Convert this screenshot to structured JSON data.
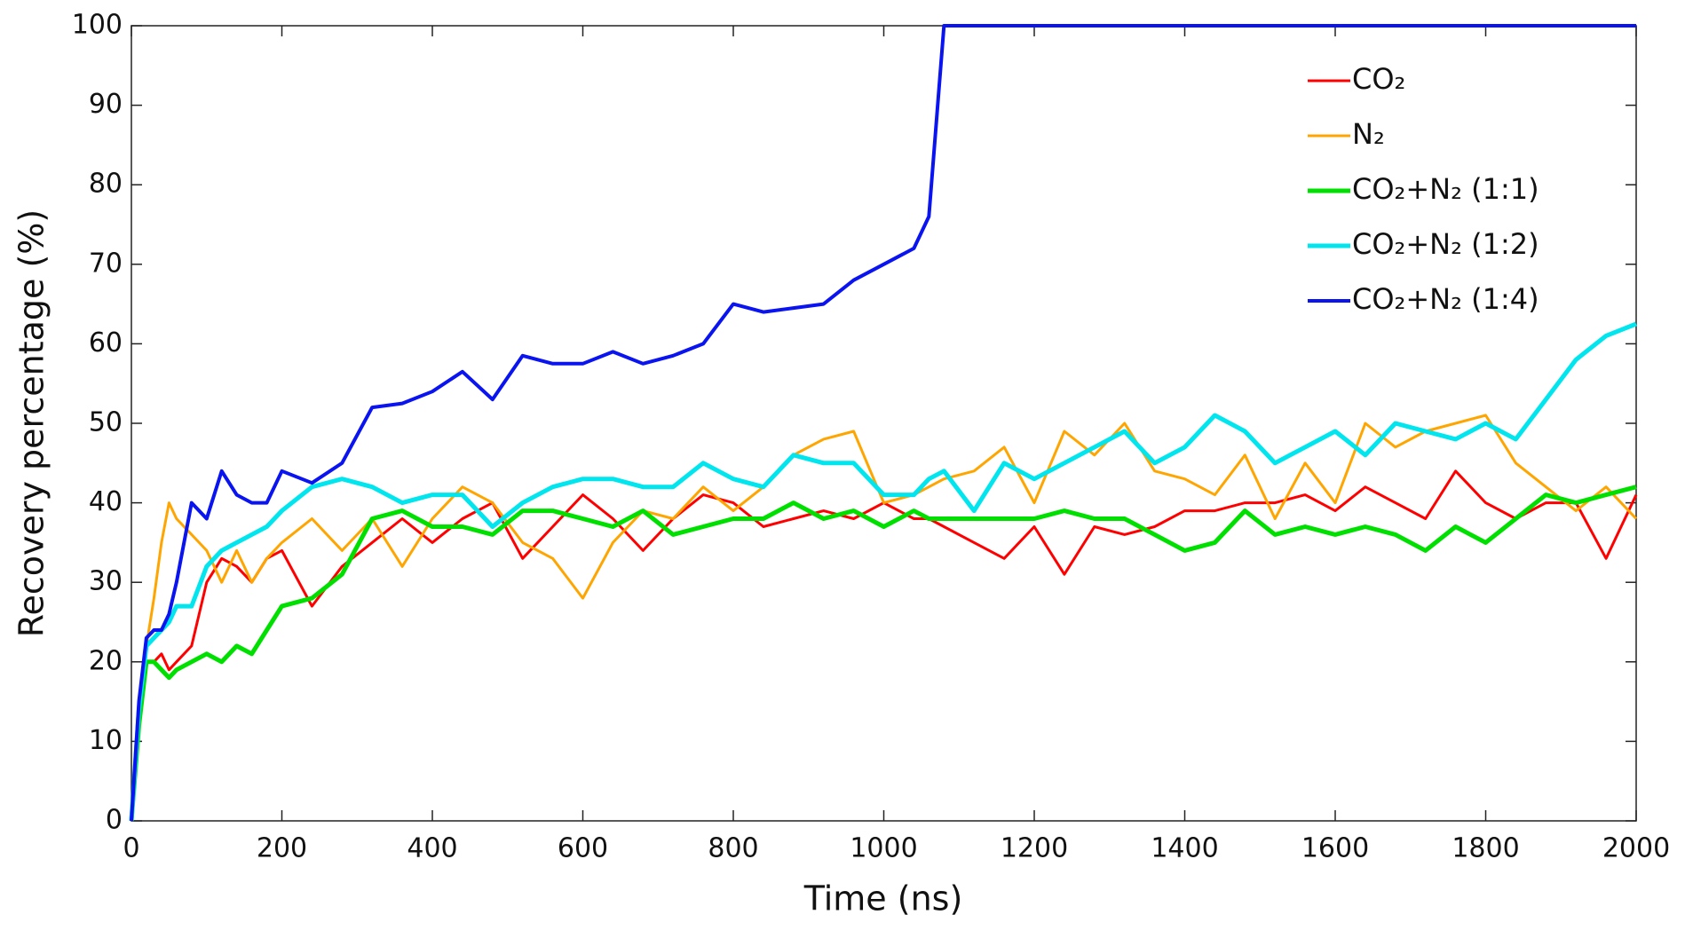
{
  "chart_data": {
    "type": "line",
    "xlabel": "Time (ns)",
    "ylabel": "Recovery percentage (%)",
    "x": [
      0,
      10,
      20,
      30,
      40,
      50,
      60,
      80,
      100,
      120,
      140,
      160,
      180,
      200,
      240,
      280,
      320,
      360,
      400,
      440,
      480,
      520,
      560,
      600,
      640,
      680,
      720,
      760,
      800,
      840,
      880,
      920,
      960,
      1000,
      1040,
      1060,
      1080,
      1120,
      1160,
      1200,
      1240,
      1280,
      1320,
      1360,
      1400,
      1440,
      1480,
      1520,
      1560,
      1600,
      1640,
      1680,
      1720,
      1760,
      1800,
      1840,
      1880,
      1920,
      1960,
      2000
    ],
    "series": [
      {
        "name": "CO₂",
        "color": "#ff0000",
        "width": 3,
        "values": [
          0,
          12,
          20,
          20,
          21,
          19,
          20,
          22,
          30,
          33,
          32,
          30,
          33,
          34,
          27,
          32,
          35,
          38,
          35,
          38,
          40,
          33,
          37,
          41,
          38,
          34,
          38,
          41,
          40,
          37,
          38,
          39,
          38,
          40,
          38,
          38,
          37,
          35,
          33,
          37,
          31,
          37,
          36,
          37,
          39,
          39,
          40,
          40,
          41,
          39,
          42,
          40,
          38,
          44,
          40,
          38,
          40,
          40,
          33,
          41
        ]
      },
      {
        "name": "N₂",
        "color": "#ffa500",
        "width": 3,
        "values": [
          0,
          15,
          22,
          28,
          35,
          40,
          38,
          36,
          34,
          30,
          34,
          30,
          33,
          35,
          38,
          34,
          38,
          32,
          38,
          42,
          40,
          35,
          33,
          28,
          35,
          39,
          38,
          42,
          39,
          42,
          46,
          48,
          49,
          40,
          41,
          42,
          43,
          44,
          47,
          40,
          49,
          46,
          50,
          44,
          43,
          41,
          46,
          38,
          45,
          40,
          50,
          47,
          49,
          50,
          51,
          45,
          42,
          39,
          42,
          38
        ]
      },
      {
        "name": "CO₂+N₂ (1:1)",
        "color": "#00e000",
        "width": 5,
        "values": [
          0,
          12,
          20,
          20,
          19,
          18,
          19,
          20,
          21,
          20,
          22,
          21,
          24,
          27,
          28,
          31,
          38,
          39,
          37,
          37,
          36,
          39,
          39,
          38,
          37,
          39,
          36,
          37,
          38,
          38,
          40,
          38,
          39,
          37,
          39,
          38,
          38,
          38,
          38,
          38,
          39,
          38,
          38,
          36,
          34,
          35,
          39,
          36,
          37,
          36,
          37,
          36,
          34,
          37,
          35,
          38,
          41,
          40,
          41,
          42
        ]
      },
      {
        "name": "CO₂+N₂ (1:2)",
        "color": "#00e5ee",
        "width": 5,
        "values": [
          0,
          14,
          22,
          23,
          24,
          25,
          27,
          27,
          32,
          34,
          35,
          36,
          37,
          39,
          42,
          43,
          42,
          40,
          41,
          41,
          37,
          40,
          42,
          43,
          43,
          42,
          42,
          45,
          43,
          42,
          46,
          45,
          45,
          41,
          41,
          43,
          44,
          39,
          45,
          43,
          45,
          47,
          49,
          45,
          47,
          51,
          49,
          45,
          47,
          49,
          46,
          50,
          49,
          48,
          50,
          48,
          53,
          58,
          61,
          62.5
        ]
      },
      {
        "name": "CO₂+N₂ (1:4)",
        "color": "#0a14f0",
        "width": 4,
        "values": [
          0,
          15,
          23,
          24,
          24,
          26,
          30,
          40,
          38,
          44,
          41,
          40,
          40,
          44,
          42.5,
          45,
          52,
          52.5,
          54,
          56.5,
          53,
          58.5,
          57.5,
          57.5,
          59,
          57.5,
          58.5,
          60,
          65,
          64,
          64.5,
          65,
          68,
          70,
          72,
          76,
          100,
          100,
          100,
          100,
          100,
          100,
          100,
          100,
          100,
          100,
          100,
          100,
          100,
          100,
          100,
          100,
          100,
          100,
          100,
          100,
          100,
          100,
          100,
          100
        ]
      }
    ],
    "xlim": [
      0,
      2000
    ],
    "xticks": [
      0,
      200,
      400,
      600,
      800,
      1000,
      1200,
      1400,
      1600,
      1800,
      2000
    ],
    "ylim": [
      0,
      100
    ],
    "yticks": [
      0,
      10,
      20,
      30,
      40,
      50,
      60,
      70,
      80,
      90,
      100
    ],
    "legend": "upper right"
  }
}
